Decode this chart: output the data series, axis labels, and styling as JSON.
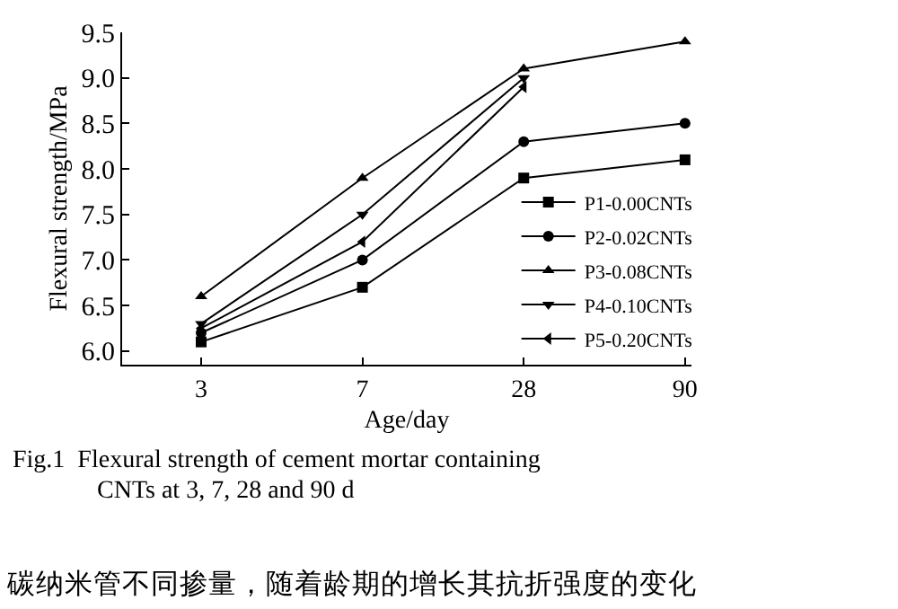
{
  "chart_data": {
    "type": "line",
    "xlabel": "Age/day",
    "ylabel": "Flexural strength/MPa",
    "categories": [
      "3",
      "7",
      "28",
      "90"
    ],
    "ylim": [
      5.85,
      9.5
    ],
    "yticks": [
      {
        "value": 6,
        "label": "6.0"
      },
      6.5,
      {
        "value": 7,
        "label": "7.0"
      },
      7.5,
      {
        "value": 8,
        "label": "8.0"
      },
      8.5,
      {
        "value": 9,
        "label": "9.0"
      },
      9.5
    ],
    "series": [
      {
        "name": "P1-0.00CNTs",
        "color": "#000000",
        "marker": "square",
        "values": [
          6.1,
          6.7,
          7.9,
          8.1
        ]
      },
      {
        "name": "P2-0.02CNTs",
        "color": "#000000",
        "marker": "circle",
        "values": [
          6.2,
          7.0,
          8.3,
          8.5
        ]
      },
      {
        "name": "P3-0.08CNTs",
        "color": "#000000",
        "marker": "triangle",
        "values": [
          6.6,
          7.9,
          9.1,
          9.4
        ]
      },
      {
        "name": "P4-0.10CNTs",
        "color": "#000000",
        "marker": "triangle-down",
        "values": [
          6.3,
          7.5,
          9.0,
          null
        ]
      },
      {
        "name": "P5-0.20CNTs",
        "color": "#000000",
        "marker": "triangle-left",
        "values": [
          6.25,
          7.2,
          8.9,
          null
        ]
      }
    ],
    "legend": "bottom right",
    "grid": false,
    "line_style": "solid",
    "annotations": [
      "Fig.1  Flexural strength of cement mortar containing",
      "CNTs at 3, 7, 28 and 90 d",
      "碳纳米管不同掺量，随着龄期的增长其抗折强度的变化"
    ]
  }
}
